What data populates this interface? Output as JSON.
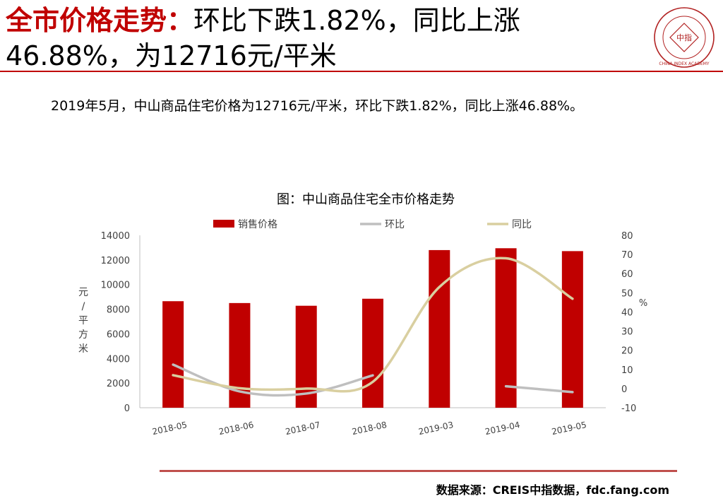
{
  "header": {
    "title_highlight": "全市价格走势：",
    "title_line1_rest": "环比下跌1.82%，同比上涨",
    "title_line2": "46.88%，为12716元/平米"
  },
  "logo": {
    "seal_text": "中指",
    "ring_text": "CHINA INDEX ACADEMY"
  },
  "summary": "2019年5月，中山商品住宅价格为12716元/平米，环比下跌1.82%，同比上涨46.88%。",
  "source": "数据来源：CREIS中指数据，fdc.fang.com",
  "chart_data": {
    "type": "bar",
    "title": "图：中山商品住宅全市价格走势",
    "categories": [
      "2018-05",
      "2018-06",
      "2018-07",
      "2018-08",
      "2019-03",
      "2019-04",
      "2019-05"
    ],
    "ylabel": "元/平方米",
    "y2label": "%",
    "ylim": [
      0,
      14000
    ],
    "yticks": [
      0,
      2000,
      4000,
      6000,
      8000,
      10000,
      12000,
      14000
    ],
    "y2lim": [
      -10,
      80
    ],
    "y2ticks": [
      -10,
      0,
      10,
      20,
      30,
      40,
      50,
      60,
      70,
      80
    ],
    "legend_position": "top",
    "grid": false,
    "series": [
      {
        "name": "销售价格",
        "type": "bar",
        "axis": "left",
        "color": "#c00000",
        "values": [
          8650,
          8500,
          8280,
          8850,
          12800,
          12950,
          12716
        ]
      },
      {
        "name": "环比",
        "type": "line",
        "axis": "right",
        "color": "#bfbfbf",
        "values": [
          12.5,
          -1.5,
          -2.6,
          6.9,
          null,
          1.2,
          -1.82
        ]
      },
      {
        "name": "同比",
        "type": "line",
        "axis": "right",
        "color": "#d9cfa0",
        "values": [
          7.0,
          0.2,
          0.0,
          3.5,
          53,
          68.0,
          46.88
        ]
      }
    ]
  }
}
